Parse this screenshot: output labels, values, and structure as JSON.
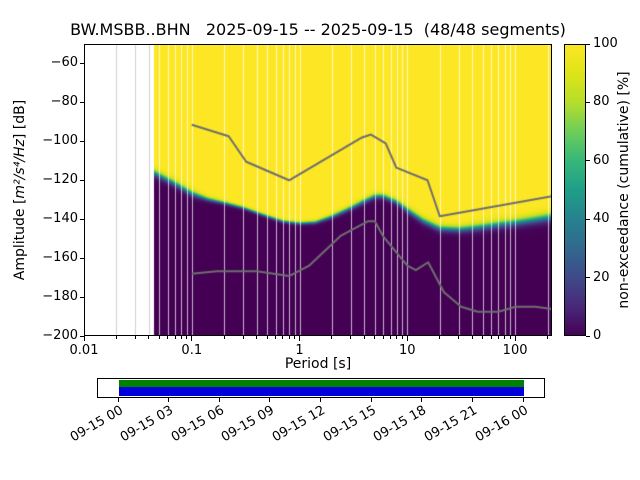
{
  "title": "BW.MSBB..BHN   2025-09-15 -- 2025-09-15  (48/48 segments)",
  "axes": {
    "xlabel": "Period [s]",
    "ylabel_prefix": "Amplitude [",
    "ylabel_math": "m²/s⁴/Hz",
    "ylabel_suffix": "] [dB]",
    "x_tick_labels": [
      "0.01",
      "0.1",
      "1",
      "10",
      "100"
    ],
    "x_tick_values": [
      0.01,
      0.1,
      1,
      10,
      100
    ],
    "y_tick_labels": [
      "−60",
      "−80",
      "−100",
      "−120",
      "−140",
      "−160",
      "−180",
      "−200"
    ],
    "y_tick_values": [
      -60,
      -80,
      -100,
      -120,
      -140,
      -160,
      -180,
      -200
    ]
  },
  "colorbar": {
    "label": "non-exceedance (cumulative) [%]",
    "tick_labels": [
      "0",
      "20",
      "40",
      "60",
      "80",
      "100"
    ],
    "tick_values": [
      0,
      20,
      40,
      60,
      80,
      100
    ]
  },
  "timeline": {
    "tick_labels": [
      "09-15 00",
      "09-15 03",
      "09-15 06",
      "09-15 09",
      "09-15 12",
      "09-15 15",
      "09-15 18",
      "09-15 21",
      "09-16 00"
    ],
    "bar_top_color": "#008000",
    "bar_bottom_color": "#0000dd"
  },
  "chart_data": {
    "type": "heatmap",
    "title": "BW.MSBB..BHN 2025-09-15 -- 2025-09-15 (48/48 segments)",
    "station": "BW.MSBB..BHN",
    "date_range": [
      "2025-09-15",
      "2025-09-15"
    ],
    "segments_used": "48/48",
    "xlabel": "Period [s]",
    "ylabel": "Amplitude [m²/s⁴/Hz] [dB]",
    "colorbar_label": "non-exceedance (cumulative) [%]",
    "xscale": "log",
    "xlim": [
      0.01,
      220
    ],
    "ylim": [
      -200,
      -50
    ],
    "colorbar_range": [
      0,
      100
    ],
    "grid": true,
    "data_period_range": [
      0.045,
      220
    ],
    "distribution": {
      "note": "non-exceedance transition vs period: center_db = ~50% cumulative level, spread_db = transition half-width",
      "periods": [
        0.045,
        0.055,
        0.07,
        0.1,
        0.14,
        0.2,
        0.3,
        0.45,
        0.7,
        1.0,
        1.4,
        2.0,
        3.0,
        4.0,
        5.0,
        6.0,
        8.0,
        10,
        14,
        20,
        30,
        45,
        70,
        100,
        150,
        220
      ],
      "center_db": [
        -116,
        -118.5,
        -121.5,
        -126.5,
        -129.5,
        -131.5,
        -134,
        -137.5,
        -141,
        -142,
        -141.5,
        -138.5,
        -134,
        -130.5,
        -128,
        -128,
        -131,
        -135,
        -140.5,
        -144.5,
        -145,
        -144,
        -142.5,
        -141.5,
        -140,
        -138.5
      ],
      "spread_db": [
        2.8,
        2.6,
        2.5,
        2.4,
        1.6,
        1.3,
        1.2,
        1.2,
        1.2,
        1.2,
        1.3,
        1.6,
        1.8,
        2.0,
        2.0,
        2.0,
        2.0,
        2.4,
        2.5,
        2.5,
        2.5,
        2.8,
        3.0,
        3.0,
        3.2,
        3.5
      ]
    },
    "noise_models": {
      "color": "#6e6e6e",
      "nhnm": {
        "name": "Peterson NHNM",
        "periods": [
          0.1,
          0.22,
          0.32,
          0.8,
          3.8,
          4.6,
          6.3,
          7.9,
          15.4,
          20,
          220
        ],
        "db": [
          -91.5,
          -97.4,
          -110.5,
          -120,
          -98,
          -96.5,
          -101,
          -113.5,
          -120,
          -138.5,
          -128.2
        ]
      },
      "nlnm": {
        "name": "Peterson NLNM",
        "periods": [
          0.1,
          0.17,
          0.4,
          0.8,
          1.24,
          2.4,
          4.3,
          5,
          6,
          10,
          12,
          15.6,
          21.9,
          31.6,
          45,
          70,
          101,
          154,
          220
        ],
        "db": [
          -168,
          -166.7,
          -166.7,
          -169.2,
          -163.7,
          -148.6,
          -141.1,
          -141.1,
          -149,
          -163.8,
          -166.2,
          -162.1,
          -177.5,
          -185,
          -187.5,
          -187.5,
          -185,
          -185,
          -186.1
        ]
      }
    },
    "colormap_stops": [
      {
        "pos": 0.0,
        "color": "#440154"
      },
      {
        "pos": 0.1,
        "color": "#482878"
      },
      {
        "pos": 0.2,
        "color": "#3e4a89"
      },
      {
        "pos": 0.3,
        "color": "#31688e"
      },
      {
        "pos": 0.4,
        "color": "#26828e"
      },
      {
        "pos": 0.5,
        "color": "#1f9e89"
      },
      {
        "pos": 0.6,
        "color": "#35b779"
      },
      {
        "pos": 0.7,
        "color": "#6dcd59"
      },
      {
        "pos": 0.8,
        "color": "#b5de2b"
      },
      {
        "pos": 0.9,
        "color": "#dfe318"
      },
      {
        "pos": 1.0,
        "color": "#fde725"
      }
    ]
  }
}
